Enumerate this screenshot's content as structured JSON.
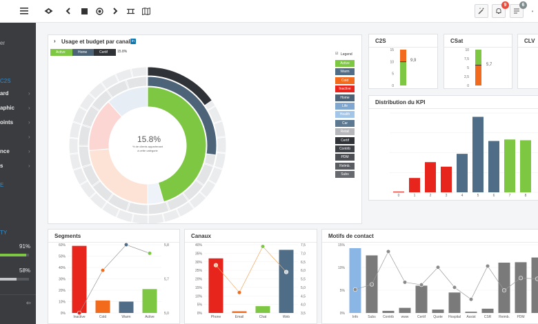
{
  "topbar": {
    "notifications_count": "9",
    "tasks_count": "6",
    "badge_red": "#e74c3c",
    "badge_gray": "#7f8c8d"
  },
  "sidebar": {
    "top_fragment": "er",
    "section1": "C2S",
    "items1": [
      "ard",
      "aphic",
      "oints",
      "",
      "nce",
      "s"
    ],
    "section2": "E",
    "item2": "",
    "section3": "TY",
    "progress1": {
      "value": "91%",
      "fraction": 0.91
    },
    "progress2": {
      "value": "58%",
      "fraction": 0.58
    }
  },
  "usage_panel": {
    "title": "Usage et budget par canal",
    "breadcrumb": [
      "Active",
      "Home",
      "Certif"
    ],
    "breadcrumb_value": "15.8%",
    "center_value": "15.8%",
    "center_sub1": "% de clients appartenant",
    "center_sub2": "à cette catégorie",
    "legend_title": "Legend",
    "legend": [
      {
        "label": "Active",
        "color": "#7dc742"
      },
      {
        "label": "Warm",
        "color": "#4f6d87"
      },
      {
        "label": "Cold",
        "color": "#f26b1d"
      },
      {
        "label": "Inactive",
        "color": "#e8251c"
      },
      {
        "label": "Home",
        "color": "#4d6478"
      },
      {
        "label": "Life",
        "color": "#7fa7cf"
      },
      {
        "label": "Health",
        "color": "#a3c6e8"
      },
      {
        "label": "Car",
        "color": "#5d7891"
      },
      {
        "label": "Retail",
        "color": "#b5b7ba"
      },
      {
        "label": "Certif",
        "color": "#2f3237"
      },
      {
        "label": "Contrib",
        "color": "#3d4146"
      },
      {
        "label": "PDM",
        "color": "#4b4e53"
      },
      {
        "label": "Relmb.",
        "color": "#595c61"
      },
      {
        "label": "Subs",
        "color": "#66696e"
      }
    ]
  },
  "c2s": {
    "title": "C2S",
    "ticks": [
      "15",
      "10",
      "5",
      "0"
    ],
    "value": "9,9",
    "fraction": 0.66,
    "fill": "#7dc742",
    "top": "#f26b1d"
  },
  "csat": {
    "title": "CSat",
    "ticks": [
      "10",
      "7,5",
      "5",
      "2,5",
      "0"
    ],
    "value": "5,7",
    "fraction": 0.57,
    "fill": "#f26b1d",
    "top": "#7dc742"
  },
  "clv": {
    "title": "CLV"
  },
  "kpi": {
    "title": "Distribution du KPI",
    "chart_data": {
      "type": "bar",
      "categories": [
        "0",
        "1",
        "2",
        "3",
        "4",
        "5",
        "6",
        "7",
        "8"
      ],
      "values": [
        1,
        19,
        40,
        34,
        51,
        100,
        68,
        70,
        69
      ],
      "colors": [
        "#e8251c",
        "#e8251c",
        "#e8251c",
        "#e8251c",
        "#4f6d87",
        "#4f6d87",
        "#4f6d87",
        "#7dc742",
        "#7dc742"
      ],
      "ylim": [
        0,
        105
      ]
    }
  },
  "segments": {
    "title": "Segments",
    "chart_data": {
      "type": "bar",
      "categories": [
        "Inactive",
        "Cold",
        "Warm",
        "Active"
      ],
      "values": [
        59,
        11,
        10,
        21
      ],
      "colors": [
        "#e8251c",
        "#f26b1d",
        "#4f6d87",
        "#7dc742"
      ],
      "line_values": [
        5.0,
        5.5,
        5.8,
        5.7
      ],
      "line_colors": [
        "#e8251c",
        "#f26b1d",
        "#4f6d87",
        "#7dc742"
      ],
      "left_ticks": [
        "60%",
        "50%",
        "40%",
        "30%",
        "20%",
        "10%",
        "0%"
      ],
      "right_ticks": [
        "5,8",
        "5,7",
        "5,0"
      ],
      "ylim": [
        0,
        60
      ],
      "y2lim": [
        5.0,
        5.8
      ]
    }
  },
  "canaux": {
    "title": "Canaux",
    "chart_data": {
      "type": "bar",
      "categories": [
        "Phone",
        "Email",
        "Chat",
        "Web"
      ],
      "values": [
        32,
        1,
        4,
        37
      ],
      "colors": [
        "#e8251c",
        "#f26b1d",
        "#7dc742",
        "#4f6d87"
      ],
      "line_values": [
        6.3,
        4.7,
        7.4,
        5.9
      ],
      "left_ticks": [
        "40%",
        "35%",
        "30%",
        "25%",
        "20%",
        "15%",
        "10%",
        "5%",
        "0%"
      ],
      "right_ticks": [
        "7,5",
        "7,0",
        "6,5",
        "6,0",
        "5,5",
        "5,0",
        "4,5",
        "4,0",
        "3,5"
      ],
      "ylim": [
        0,
        40
      ],
      "y2lim": [
        3.5,
        7.5
      ]
    }
  },
  "motifs": {
    "title": "Motifs de contact",
    "chart_data": {
      "type": "bar",
      "categories": [
        "Info",
        "Subs",
        "Contrib",
        "www",
        "Certif",
        "Quote",
        "Hospital",
        "Assist",
        "CSR",
        "Reimb.",
        "PDM",
        ""
      ],
      "values": [
        15.2,
        13.5,
        0.5,
        1.2,
        6.4,
        0.8,
        4.8,
        0.3,
        1.0,
        11.8,
        11.9,
        13
      ],
      "colors": [
        "#8ab6e6",
        "#7a7a7a",
        "#7a7a7a",
        "#7a7a7a",
        "#7a7a7a",
        "#7a7a7a",
        "#7a7a7a",
        "#7a7a7a",
        "#7a7a7a",
        "#7a7a7a",
        "#7a7a7a",
        "#7a7a7a"
      ],
      "line_values": [
        5.5,
        6.7,
        14.4,
        7.2,
        6.6,
        10.7,
        6.0,
        3.2,
        11.0,
        5.3,
        8.2,
        8
      ],
      "left_ticks": [
        "15%",
        "10%",
        "5%",
        "0%"
      ],
      "ylim": [
        0,
        16
      ]
    }
  }
}
